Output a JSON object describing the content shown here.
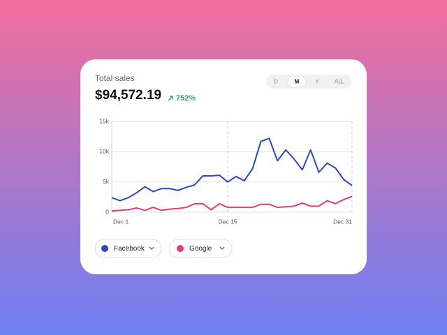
{
  "chart_data": {
    "type": "line",
    "title": "Total sales",
    "subtitle": "$94,572.19",
    "annotation": "752%",
    "tabs": [
      "D",
      "M",
      "Y",
      "ALL"
    ],
    "selected_tab": 1,
    "categories": [
      "Dec 1",
      null,
      null,
      null,
      null,
      null,
      null,
      null,
      null,
      null,
      null,
      null,
      null,
      null,
      "Dec 15",
      null,
      null,
      null,
      null,
      null,
      null,
      null,
      null,
      null,
      null,
      null,
      null,
      null,
      null,
      "Dec 31"
    ],
    "series": [
      {
        "name": "Facebook",
        "color": "#2f45c8",
        "values": [
          2400,
          1900,
          2400,
          3200,
          4200,
          3400,
          3900,
          3900,
          3600,
          4100,
          4500,
          6000,
          6000,
          6100,
          5000,
          5900,
          5200,
          7200,
          11700,
          12200,
          8500,
          10300,
          8800,
          7000,
          10300,
          6600,
          8100,
          7300,
          5400,
          4400
        ]
      },
      {
        "name": "Google",
        "color": "#e63a7a",
        "values": [
          200,
          300,
          400,
          700,
          300,
          800,
          300,
          500,
          600,
          800,
          1400,
          1400,
          400,
          1400,
          800,
          800,
          800,
          800,
          1300,
          1300,
          800,
          900,
          1000,
          1500,
          1000,
          1000,
          1900,
          1400,
          2100,
          2600
        ]
      }
    ],
    "ylim": [
      0,
      15000
    ],
    "yticks": [
      0,
      {
        "value": 5000,
        "label": "5k"
      },
      {
        "value": 10000,
        "label": "10k"
      },
      {
        "value": 15000,
        "label": "15k"
      }
    ],
    "grid": true
  }
}
